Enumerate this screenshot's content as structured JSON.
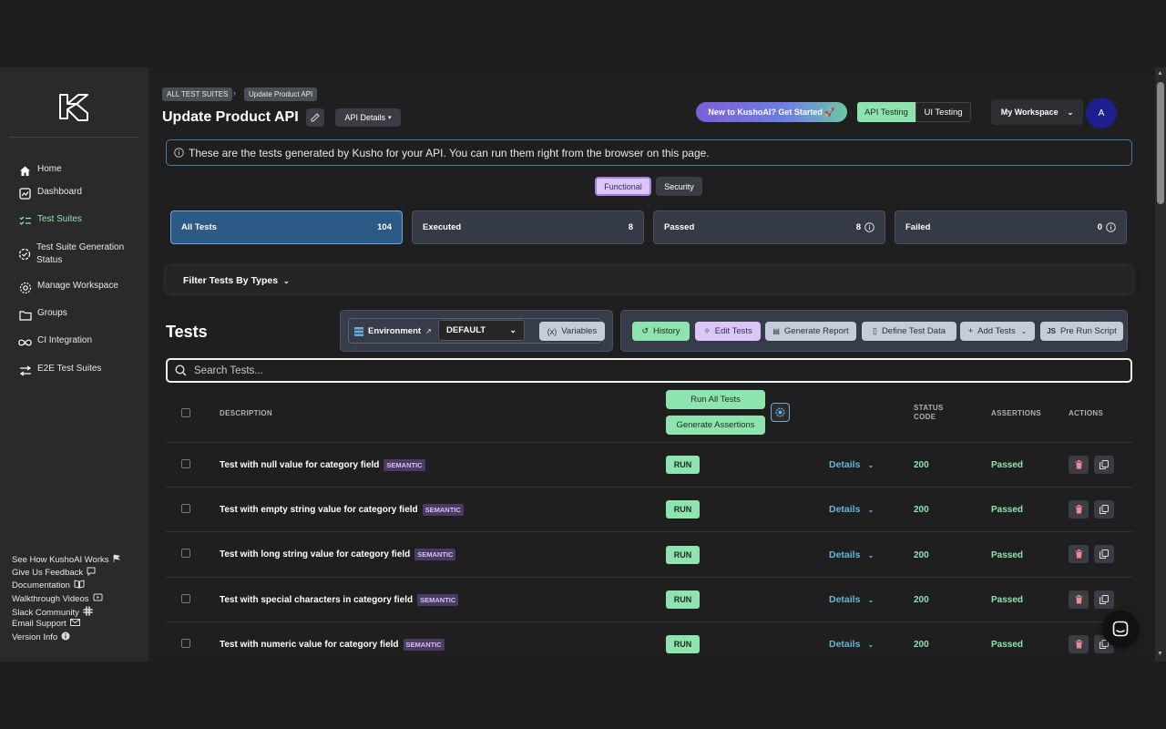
{
  "sidebar": {
    "items": [
      {
        "label": "Home",
        "icon": "home-icon"
      },
      {
        "label": "Dashboard",
        "icon": "chart-icon"
      },
      {
        "label": "Test Suites",
        "icon": "checklist-icon"
      },
      {
        "label": "Test Suite Generation Status",
        "icon": "progress-icon"
      },
      {
        "label": "Manage Workspace",
        "icon": "gear-icon"
      },
      {
        "label": "Groups",
        "icon": "folder-icon"
      },
      {
        "label": "CI Integration",
        "icon": "infinity-icon"
      },
      {
        "label": "E2E Test Suites",
        "icon": "arrows-icon"
      }
    ],
    "footer": [
      {
        "label": "See How KushoAI Works",
        "icon": "flag-icon"
      },
      {
        "label": "Give Us Feedback",
        "icon": "feedback-icon"
      },
      {
        "label": "Documentation",
        "icon": "book-icon"
      },
      {
        "label": "Walkthrough Videos",
        "icon": "video-icon"
      },
      {
        "label": "Slack Community",
        "icon": "slack-icon"
      },
      {
        "label": "Email Support",
        "icon": "mail-icon"
      },
      {
        "label": "Version Info",
        "icon": "info-icon"
      }
    ]
  },
  "breadcrumb": [
    "ALL TEST SUITES",
    "Update Product API"
  ],
  "page_title": "Update Product API",
  "api_details_label": "API Details",
  "get_started_label": "New to KushoAI? Get Started 🚀",
  "testing_tabs": [
    "API Testing",
    "UI Testing"
  ],
  "workspace_label": "My Workspace",
  "avatar_letter": "A",
  "info_banner": "These are the tests generated by Kusho for your API. You can run them right from the browser on this page.",
  "type_tabs": [
    "Functional",
    "Security"
  ],
  "stats": [
    {
      "label": "All Tests",
      "value": "104"
    },
    {
      "label": "Executed",
      "value": "8"
    },
    {
      "label": "Passed",
      "value": "8"
    },
    {
      "label": "Failed",
      "value": "0"
    }
  ],
  "filter_label": "Filter Tests By Types",
  "tests_title": "Tests",
  "environment": {
    "label": "Environment",
    "selected": "DEFAULT",
    "variables_label": "Variables"
  },
  "actions": {
    "history": "History",
    "edit_tests": "Edit Tests",
    "generate_report": "Generate Report",
    "define_test_data": "Define Test Data",
    "add_tests": "Add Tests",
    "pre_run_script": "Pre Run Script"
  },
  "search_placeholder": "Search Tests...",
  "table": {
    "headers": {
      "description": "DESCRIPTION",
      "status_code": "STATUS CODE",
      "assertions": "ASSERTIONS",
      "actions": "ACTIONS"
    },
    "run_all_label": "Run All Tests",
    "generate_assertions_label": "Generate Assertions",
    "rows": [
      {
        "description": "Test with null value for category field",
        "tag": "SEMANTIC",
        "run": "RUN",
        "details": "Details",
        "status": "200",
        "assertions": "Passed"
      },
      {
        "description": "Test with empty string value for category field",
        "tag": "SEMANTIC",
        "run": "RUN",
        "details": "Details",
        "status": "200",
        "assertions": "Passed"
      },
      {
        "description": "Test with long string value for category field",
        "tag": "SEMANTIC",
        "run": "RUN",
        "details": "Details",
        "status": "200",
        "assertions": "Passed"
      },
      {
        "description": "Test with special characters in category field",
        "tag": "SEMANTIC",
        "run": "RUN",
        "details": "Details",
        "status": "200",
        "assertions": "Passed"
      },
      {
        "description": "Test with numeric value for category field",
        "tag": "SEMANTIC",
        "run": "RUN",
        "details": "Details",
        "status": "200",
        "assertions": "Passed"
      }
    ]
  },
  "colors": {
    "accent_green": "#8ee4af",
    "accent_blue": "#5fb8d8",
    "purple": "#c9a4f2"
  }
}
